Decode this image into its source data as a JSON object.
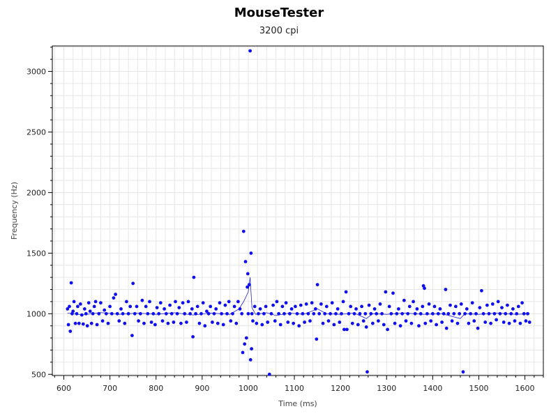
{
  "chart_data": {
    "type": "scatter",
    "title": "MouseTester",
    "subtitle": "3200 cpi",
    "xlabel": "Time (ms)",
    "ylabel": "Frequency (Hz)",
    "xlim": [
      575,
      1640
    ],
    "ylim": [
      490,
      3210
    ],
    "xticks": [
      600,
      700,
      800,
      900,
      1000,
      1100,
      1200,
      1300,
      1400,
      1500,
      1600
    ],
    "yticks": [
      500,
      1000,
      1500,
      2000,
      2500,
      3000
    ],
    "grid": true,
    "colors": {
      "points": "#1010ee",
      "line": "#2222cc",
      "grid": "#e6e6e6",
      "axis": "#000000"
    },
    "series": [
      {
        "points": [
          [
            608,
            1040
          ],
          [
            610,
            910
          ],
          [
            612,
            1060
          ],
          [
            614,
            855
          ],
          [
            616,
            1255
          ],
          [
            618,
            1000
          ],
          [
            620,
            1020
          ],
          [
            622,
            1100
          ],
          [
            625,
            920
          ],
          [
            628,
            1000
          ],
          [
            630,
            1060
          ],
          [
            633,
            920
          ],
          [
            636,
            1080
          ],
          [
            639,
            990
          ],
          [
            642,
            915
          ],
          [
            645,
            1040
          ],
          [
            648,
            1000
          ],
          [
            651,
            900
          ],
          [
            654,
            1090
          ],
          [
            657,
            1020
          ],
          [
            660,
            920
          ],
          [
            663,
            1000
          ],
          [
            666,
            1060
          ],
          [
            669,
            1100
          ],
          [
            672,
            910
          ],
          [
            676,
            1000
          ],
          [
            680,
            1090
          ],
          [
            684,
            940
          ],
          [
            688,
            1030
          ],
          [
            692,
            1000
          ],
          [
            696,
            920
          ],
          [
            700,
            1060
          ],
          [
            704,
            1000
          ],
          [
            708,
            1130
          ],
          [
            712,
            1160
          ],
          [
            716,
            1000
          ],
          [
            720,
            940
          ],
          [
            724,
            1040
          ],
          [
            728,
            1000
          ],
          [
            732,
            920
          ],
          [
            736,
            1100
          ],
          [
            740,
            1000
          ],
          [
            744,
            1060
          ],
          [
            748,
            820
          ],
          [
            750,
            1250
          ],
          [
            754,
            1000
          ],
          [
            758,
            1060
          ],
          [
            762,
            940
          ],
          [
            766,
            1000
          ],
          [
            770,
            1110
          ],
          [
            774,
            920
          ],
          [
            778,
            1060
          ],
          [
            782,
            1000
          ],
          [
            786,
            1100
          ],
          [
            790,
            930
          ],
          [
            794,
            1000
          ],
          [
            798,
            910
          ],
          [
            802,
            1050
          ],
          [
            806,
            1000
          ],
          [
            810,
            1090
          ],
          [
            814,
            940
          ],
          [
            818,
            1040
          ],
          [
            822,
            1000
          ],
          [
            826,
            920
          ],
          [
            830,
            1070
          ],
          [
            834,
            1000
          ],
          [
            838,
            930
          ],
          [
            842,
            1100
          ],
          [
            846,
            1000
          ],
          [
            850,
            1050
          ],
          [
            854,
            920
          ],
          [
            858,
            1090
          ],
          [
            862,
            1000
          ],
          [
            866,
            930
          ],
          [
            870,
            1100
          ],
          [
            874,
            1000
          ],
          [
            878,
            1040
          ],
          [
            880,
            810
          ],
          [
            882,
            1300
          ],
          [
            886,
            1000
          ],
          [
            890,
            1060
          ],
          [
            894,
            920
          ],
          [
            898,
            1000
          ],
          [
            902,
            1090
          ],
          [
            906,
            900
          ],
          [
            910,
            1020
          ],
          [
            914,
            1000
          ],
          [
            918,
            1060
          ],
          [
            922,
            930
          ],
          [
            926,
            1000
          ],
          [
            930,
            1040
          ],
          [
            934,
            920
          ],
          [
            938,
            1090
          ],
          [
            942,
            1000
          ],
          [
            946,
            910
          ],
          [
            950,
            1070
          ],
          [
            954,
            1000
          ],
          [
            958,
            1100
          ],
          [
            962,
            940
          ],
          [
            966,
            1000
          ],
          [
            970,
            1060
          ],
          [
            974,
            920
          ],
          [
            978,
            1100
          ],
          [
            982,
            1040
          ],
          [
            986,
            1000
          ],
          [
            988,
            680
          ],
          [
            990,
            1680
          ],
          [
            992,
            750
          ],
          [
            994,
            1430
          ],
          [
            996,
            800
          ],
          [
            998,
            1220
          ],
          [
            999,
            1330
          ],
          [
            1000,
            1000
          ],
          [
            1002,
            1240
          ],
          [
            1004,
            3170
          ],
          [
            1005,
            620
          ],
          [
            1006,
            1500
          ],
          [
            1007,
            710
          ],
          [
            1008,
            1000
          ],
          [
            1010,
            940
          ],
          [
            1014,
            1060
          ],
          [
            1018,
            920
          ],
          [
            1022,
            1000
          ],
          [
            1026,
            1040
          ],
          [
            1030,
            910
          ],
          [
            1034,
            1000
          ],
          [
            1038,
            1060
          ],
          [
            1042,
            930
          ],
          [
            1046,
            500
          ],
          [
            1050,
            1000
          ],
          [
            1054,
            1070
          ],
          [
            1058,
            940
          ],
          [
            1062,
            1100
          ],
          [
            1066,
            1000
          ],
          [
            1070,
            910
          ],
          [
            1074,
            1060
          ],
          [
            1078,
            1000
          ],
          [
            1082,
            1090
          ],
          [
            1086,
            930
          ],
          [
            1090,
            1000
          ],
          [
            1094,
            1040
          ],
          [
            1098,
            920
          ],
          [
            1102,
            1060
          ],
          [
            1106,
            1000
          ],
          [
            1110,
            900
          ],
          [
            1114,
            1070
          ],
          [
            1118,
            1000
          ],
          [
            1122,
            930
          ],
          [
            1126,
            1080
          ],
          [
            1130,
            1000
          ],
          [
            1134,
            940
          ],
          [
            1138,
            1090
          ],
          [
            1142,
            1000
          ],
          [
            1146,
            1040
          ],
          [
            1148,
            790
          ],
          [
            1150,
            1240
          ],
          [
            1154,
            1000
          ],
          [
            1158,
            1080
          ],
          [
            1162,
            920
          ],
          [
            1166,
            1000
          ],
          [
            1170,
            1060
          ],
          [
            1174,
            940
          ],
          [
            1178,
            1000
          ],
          [
            1182,
            1090
          ],
          [
            1186,
            910
          ],
          [
            1190,
            1000
          ],
          [
            1194,
            1040
          ],
          [
            1198,
            930
          ],
          [
            1202,
            1000
          ],
          [
            1206,
            1100
          ],
          [
            1208,
            870
          ],
          [
            1212,
            1180
          ],
          [
            1214,
            870
          ],
          [
            1218,
            1000
          ],
          [
            1222,
            1060
          ],
          [
            1226,
            920
          ],
          [
            1230,
            1000
          ],
          [
            1234,
            1040
          ],
          [
            1238,
            910
          ],
          [
            1242,
            1000
          ],
          [
            1246,
            1060
          ],
          [
            1250,
            940
          ],
          [
            1254,
            1000
          ],
          [
            1256,
            890
          ],
          [
            1258,
            520
          ],
          [
            1262,
            1070
          ],
          [
            1266,
            1000
          ],
          [
            1270,
            920
          ],
          [
            1274,
            1040
          ],
          [
            1278,
            1000
          ],
          [
            1282,
            940
          ],
          [
            1286,
            1080
          ],
          [
            1290,
            1000
          ],
          [
            1294,
            910
          ],
          [
            1298,
            1180
          ],
          [
            1302,
            870
          ],
          [
            1306,
            1060
          ],
          [
            1310,
            1000
          ],
          [
            1314,
            1170
          ],
          [
            1318,
            920
          ],
          [
            1322,
            1000
          ],
          [
            1326,
            1040
          ],
          [
            1330,
            900
          ],
          [
            1334,
            1000
          ],
          [
            1338,
            1110
          ],
          [
            1342,
            940
          ],
          [
            1346,
            1000
          ],
          [
            1350,
            1060
          ],
          [
            1354,
            920
          ],
          [
            1358,
            1100
          ],
          [
            1362,
            1000
          ],
          [
            1366,
            1040
          ],
          [
            1370,
            900
          ],
          [
            1374,
            1000
          ],
          [
            1378,
            1060
          ],
          [
            1380,
            1230
          ],
          [
            1382,
            1210
          ],
          [
            1384,
            920
          ],
          [
            1388,
            1000
          ],
          [
            1392,
            1080
          ],
          [
            1396,
            940
          ],
          [
            1400,
            1000
          ],
          [
            1404,
            1060
          ],
          [
            1408,
            910
          ],
          [
            1412,
            1000
          ],
          [
            1416,
            1040
          ],
          [
            1420,
            930
          ],
          [
            1424,
            1000
          ],
          [
            1428,
            1200
          ],
          [
            1430,
            880
          ],
          [
            1434,
            1000
          ],
          [
            1438,
            1070
          ],
          [
            1442,
            940
          ],
          [
            1446,
            1000
          ],
          [
            1450,
            1060
          ],
          [
            1454,
            920
          ],
          [
            1458,
            1000
          ],
          [
            1462,
            1080
          ],
          [
            1466,
            520
          ],
          [
            1470,
            1000
          ],
          [
            1474,
            1040
          ],
          [
            1478,
            920
          ],
          [
            1482,
            1000
          ],
          [
            1486,
            1090
          ],
          [
            1490,
            940
          ],
          [
            1494,
            1000
          ],
          [
            1498,
            880
          ],
          [
            1502,
            1050
          ],
          [
            1506,
            1190
          ],
          [
            1510,
            1000
          ],
          [
            1514,
            930
          ],
          [
            1518,
            1070
          ],
          [
            1522,
            1000
          ],
          [
            1526,
            920
          ],
          [
            1530,
            1080
          ],
          [
            1534,
            1000
          ],
          [
            1538,
            950
          ],
          [
            1542,
            1100
          ],
          [
            1546,
            1000
          ],
          [
            1550,
            1050
          ],
          [
            1554,
            930
          ],
          [
            1558,
            1000
          ],
          [
            1562,
            1070
          ],
          [
            1566,
            920
          ],
          [
            1570,
            1000
          ],
          [
            1574,
            1040
          ],
          [
            1578,
            940
          ],
          [
            1582,
            1000
          ],
          [
            1586,
            1060
          ],
          [
            1590,
            920
          ],
          [
            1594,
            1090
          ],
          [
            1598,
            1000
          ],
          [
            1602,
            940
          ],
          [
            1606,
            1000
          ],
          [
            1610,
            930
          ]
        ],
        "line": [
          [
            608,
            1005
          ],
          [
            640,
            990
          ],
          [
            680,
            1010
          ],
          [
            720,
            995
          ],
          [
            760,
            1005
          ],
          [
            800,
            995
          ],
          [
            840,
            1008
          ],
          [
            880,
            990
          ],
          [
            920,
            1005
          ],
          [
            960,
            995
          ],
          [
            980,
            1040
          ],
          [
            990,
            1100
          ],
          [
            1000,
            1180
          ],
          [
            1004,
            1300
          ],
          [
            1008,
            1050
          ],
          [
            1016,
            995
          ],
          [
            1040,
            1008
          ],
          [
            1060,
            985
          ],
          [
            1090,
            1005
          ],
          [
            1120,
            995
          ],
          [
            1150,
            1040
          ],
          [
            1170,
            1000
          ],
          [
            1200,
            995
          ],
          [
            1230,
            1005
          ],
          [
            1256,
            960
          ],
          [
            1270,
            1000
          ],
          [
            1300,
            995
          ],
          [
            1340,
            1005
          ],
          [
            1380,
            995
          ],
          [
            1420,
            1000
          ],
          [
            1460,
            960
          ],
          [
            1470,
            1000
          ],
          [
            1500,
            995
          ],
          [
            1540,
            1005
          ],
          [
            1580,
            995
          ],
          [
            1610,
            1000
          ]
        ]
      }
    ]
  }
}
